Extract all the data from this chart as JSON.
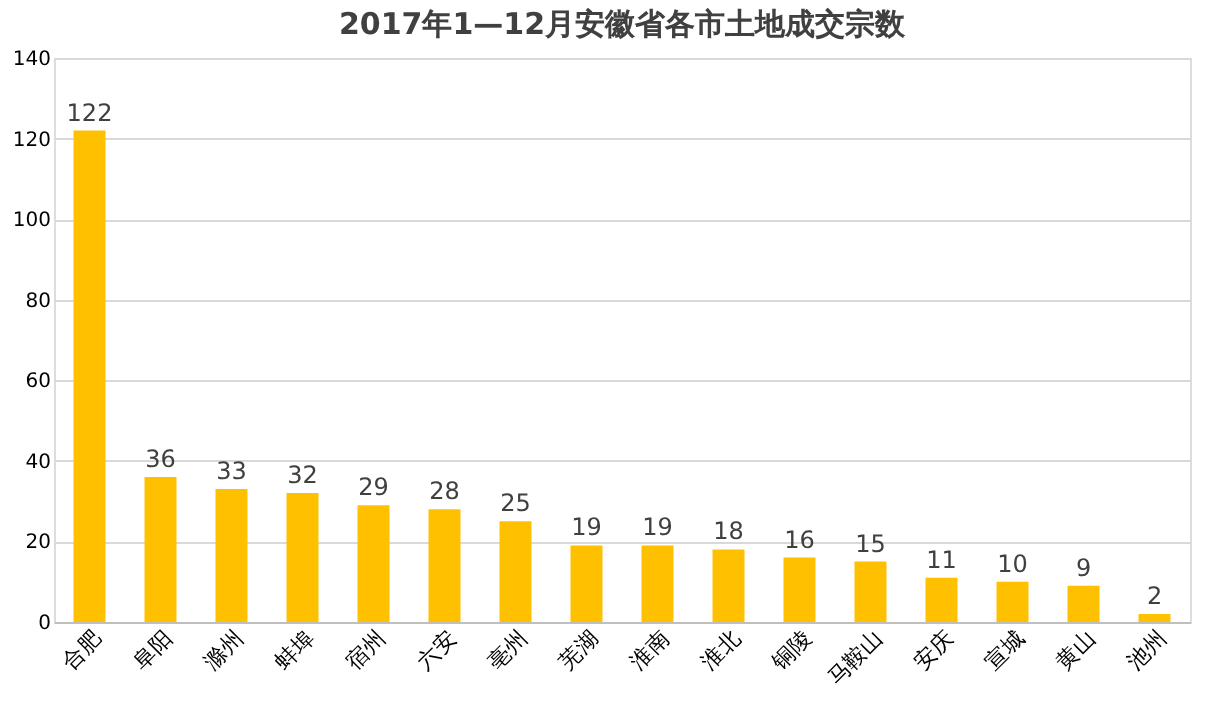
{
  "chart_data": {
    "type": "bar",
    "title": "2017年1—12月安徽省各市土地成交宗数",
    "categories": [
      "合肥",
      "阜阳",
      "滁州",
      "蚌埠",
      "宿州",
      "六安",
      "亳州",
      "芜湖",
      "淮南",
      "淮北",
      "铜陵",
      "马鞍山",
      "安庆",
      "宣城",
      "黄山",
      "池州"
    ],
    "values": [
      122,
      36,
      33,
      32,
      29,
      28,
      25,
      19,
      19,
      18,
      16,
      15,
      11,
      10,
      9,
      2
    ],
    "color": "#ffc000",
    "ylim": [
      0,
      140
    ],
    "yticks": [
      0,
      20,
      40,
      60,
      80,
      100,
      120,
      140
    ],
    "grid": "y",
    "data_labels": true
  }
}
